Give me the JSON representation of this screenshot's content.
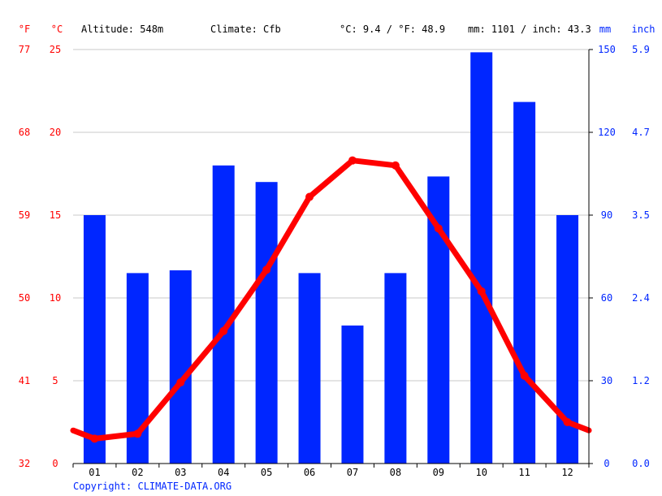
{
  "header": {
    "unit_f": "°F",
    "unit_c": "°C",
    "altitude": "Altitude: 548m",
    "climate": "Climate: Cfb",
    "temp_avg": "°C: 9.4 / °F: 48.9",
    "precip_total": "mm: 1101 / inch: 43.3",
    "unit_mm": "mm",
    "unit_inch": "inch"
  },
  "footer": {
    "copyright": "Copyright: CLIMATE-DATA.ORG"
  },
  "colors": {
    "temperature": "#ff0000",
    "precipitation": "#0026ff",
    "grid": "#c8c8c8",
    "text": "#000000",
    "footer": "#0026ff"
  },
  "chart_data": {
    "type": "bar",
    "categories": [
      "01",
      "02",
      "03",
      "04",
      "05",
      "06",
      "07",
      "08",
      "09",
      "10",
      "11",
      "12"
    ],
    "series": [
      {
        "kind": "bar",
        "axis": "mm",
        "values": [
          90,
          69,
          70,
          108,
          102,
          69,
          50,
          69,
          104,
          149,
          131,
          90
        ]
      },
      {
        "kind": "line",
        "axis": "celsius",
        "values": [
          1.5,
          1.8,
          4.9,
          8.0,
          11.7,
          16.1,
          18.3,
          18.0,
          14.2,
          10.4,
          5.3,
          2.5
        ],
        "edge_start": 2.0,
        "edge_end": 2.0
      }
    ],
    "celsius_axis": {
      "ylim": [
        0,
        25
      ],
      "ticks": [
        "0",
        "5",
        "10",
        "15",
        "20",
        "25"
      ]
    },
    "fahrenheit_axis": {
      "ticks": [
        "32",
        "41",
        "50",
        "59",
        "68",
        "77"
      ]
    },
    "mm_axis": {
      "ylim": [
        0,
        150
      ],
      "ticks": [
        "0",
        "30",
        "60",
        "90",
        "120",
        "150"
      ]
    },
    "inch_axis": {
      "ticks": [
        "0.0",
        "1.2",
        "2.4",
        "3.5",
        "4.7",
        "5.9"
      ]
    },
    "grid": true
  }
}
